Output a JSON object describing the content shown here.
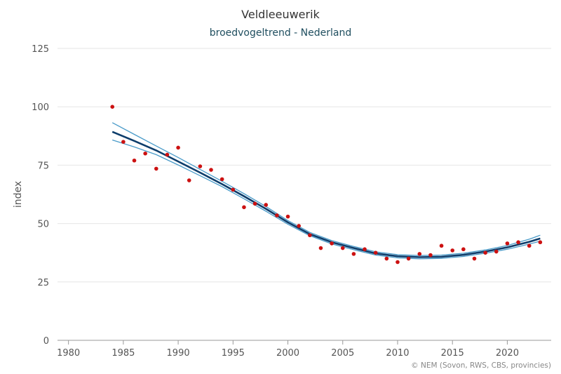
{
  "chart_data": {
    "type": "line",
    "title": "Veldleeuwerik",
    "subtitle": "broedvogeltrend - Nederland",
    "ylabel": "index",
    "credit": "© NEM (Sovon, RWS, CBS, provincies)",
    "xlim": [
      1979,
      2024
    ],
    "ylim": [
      0,
      125
    ],
    "xticks": [
      1980,
      1985,
      1990,
      1995,
      2000,
      2005,
      2010,
      2015,
      2020
    ],
    "yticks": [
      0,
      25,
      50,
      75,
      100,
      125
    ],
    "grid": true,
    "legend": "none",
    "colors": {
      "points": "#cc1111",
      "trend": "#0d3d6b",
      "band": "#4a9bc9"
    },
    "points": {
      "x": [
        1984,
        1985,
        1986,
        1987,
        1988,
        1989,
        1990,
        1991,
        1992,
        1993,
        1994,
        1995,
        1996,
        1997,
        1998,
        1999,
        2000,
        2001,
        2002,
        2003,
        2004,
        2005,
        2006,
        2007,
        2008,
        2009,
        2010,
        2011,
        2012,
        2013,
        2014,
        2015,
        2016,
        2017,
        2018,
        2019,
        2020,
        2021,
        2022,
        2023
      ],
      "y": [
        100,
        85,
        77,
        80,
        73.5,
        79.5,
        82.5,
        68.5,
        74.5,
        73,
        69,
        64.5,
        57,
        58.5,
        58,
        53.5,
        53,
        49,
        45,
        39.5,
        41.5,
        39.5,
        37,
        39,
        37.5,
        35,
        33.5,
        35,
        37,
        36.5,
        40.5,
        38.5,
        39,
        35,
        37.5,
        38,
        41.5,
        42,
        40.5,
        42
      ]
    },
    "trend": {
      "x": [
        1984,
        1986,
        1988,
        1990,
        1992,
        1994,
        1996,
        1998,
        2000,
        2002,
        2004,
        2006,
        2008,
        2010,
        2012,
        2014,
        2016,
        2018,
        2020,
        2022,
        2023
      ],
      "y": [
        89.3,
        85.4,
        81.3,
        76.6,
        71.8,
        66.9,
        61.7,
        56.3,
        50.5,
        45.5,
        42.0,
        39.5,
        37.2,
        36.0,
        35.6,
        35.8,
        36.6,
        38.0,
        39.8,
        42.2,
        43.6
      ]
    },
    "band_upper": {
      "x": [
        1984,
        1986,
        1988,
        1990,
        1992,
        1994,
        1996,
        1998,
        2000,
        2002,
        2004,
        2006,
        2008,
        2010,
        2012,
        2014,
        2016,
        2018,
        2020,
        2022,
        2023
      ],
      "y": [
        93.2,
        88.2,
        83.2,
        78.3,
        73.2,
        68.1,
        62.8,
        57.3,
        51.3,
        46.2,
        42.7,
        40.2,
        37.9,
        36.7,
        36.3,
        36.5,
        37.3,
        38.7,
        40.6,
        43.3,
        45
      ]
    },
    "band_lower": {
      "x": [
        1984,
        1986,
        1988,
        1990,
        1992,
        1994,
        1996,
        1998,
        2000,
        2002,
        2004,
        2006,
        2008,
        2010,
        2012,
        2014,
        2016,
        2018,
        2020,
        2022,
        2023
      ],
      "y": [
        85.8,
        82.8,
        79.5,
        75.1,
        70.5,
        65.8,
        60.6,
        55.3,
        49.7,
        44.8,
        41.3,
        38.8,
        36.5,
        35.3,
        34.9,
        35.1,
        35.9,
        37.3,
        39.0,
        41.2,
        42.5
      ]
    }
  }
}
